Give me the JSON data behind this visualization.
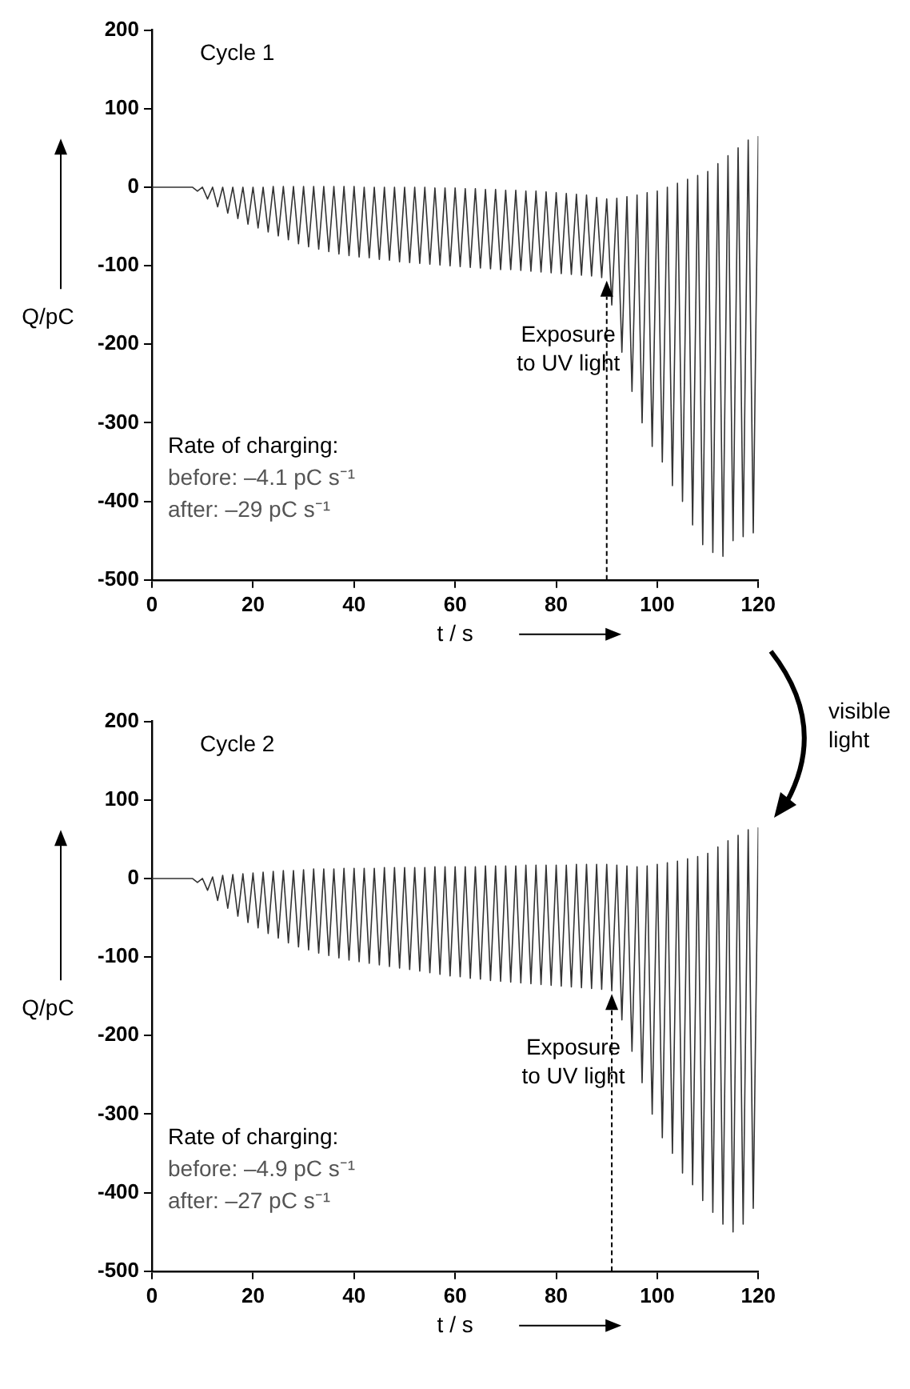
{
  "chart_data": [
    {
      "type": "line",
      "ylabel": "Q/pC",
      "xlabel": "t / s",
      "xlim": [
        0,
        120
      ],
      "xticks": [
        0,
        20,
        40,
        60,
        80,
        100,
        120
      ],
      "ylim": [
        -500,
        200
      ],
      "yticks": [
        -500,
        -400,
        -300,
        -200,
        -100,
        0,
        100,
        200
      ],
      "grid": false,
      "legend": false,
      "marker": "none",
      "line_style": "solid",
      "annotations": [
        {
          "text": "Exposure to UV light",
          "x": 90,
          "y": -115
        },
        "Cycle 1",
        "Rate of charging:",
        "before: –4.1 pC s⁻¹",
        "after: –29 pC s⁻¹"
      ],
      "series": [
        {
          "color": "#333333",
          "x": [
            0,
            8,
            9,
            10,
            11,
            12,
            13,
            14,
            15,
            16,
            17,
            18,
            19,
            20,
            21,
            22,
            23,
            24,
            25,
            26,
            27,
            28,
            29,
            30,
            31,
            32,
            33,
            34,
            35,
            36,
            37,
            38,
            39,
            40,
            41,
            42,
            43,
            44,
            45,
            46,
            47,
            48,
            49,
            50,
            51,
            52,
            53,
            54,
            55,
            56,
            57,
            58,
            59,
            60,
            61,
            62,
            63,
            64,
            65,
            66,
            67,
            68,
            69,
            70,
            71,
            72,
            73,
            74,
            75,
            76,
            77,
            78,
            79,
            80,
            81,
            82,
            83,
            84,
            85,
            86,
            87,
            88,
            89,
            90,
            91,
            92,
            93,
            94,
            95,
            96,
            97,
            98,
            99,
            100,
            101,
            102,
            103,
            104,
            105,
            106,
            107,
            108,
            109,
            110,
            111,
            112,
            113,
            114,
            115,
            116,
            117,
            118,
            119,
            120
          ],
          "values": [
            0,
            0,
            -5,
            0,
            -15,
            0,
            -25,
            0,
            -33,
            0,
            -40,
            0,
            -47,
            0,
            -52,
            0,
            -57,
            1,
            -62,
            1,
            -67,
            1,
            -72,
            1,
            -76,
            1,
            -79,
            1,
            -82,
            1,
            -85,
            1,
            -87,
            1,
            -89,
            0,
            -90,
            0,
            -92,
            0,
            -93,
            0,
            -95,
            0,
            -96,
            0,
            -97,
            0,
            -98,
            -1,
            -99,
            -1,
            -100,
            -1,
            -101,
            -2,
            -102,
            -2,
            -103,
            -3,
            -104,
            -3,
            -105,
            -4,
            -105,
            -4,
            -106,
            -5,
            -107,
            -5,
            -108,
            -6,
            -109,
            -7,
            -110,
            -8,
            -111,
            -9,
            -112,
            -10,
            -113,
            -13,
            -115,
            -15,
            -150,
            -14,
            -210,
            -12,
            -260,
            -10,
            -300,
            -7,
            -330,
            -5,
            -350,
            0,
            -380,
            5,
            -400,
            10,
            -430,
            15,
            -455,
            20,
            -465,
            30,
            -470,
            40,
            -450,
            50,
            -445,
            60,
            -440,
            65
          ]
        }
      ]
    },
    {
      "type": "other",
      "annotations": [
        "visible light"
      ]
    },
    {
      "type": "line",
      "ylabel": "Q/pC",
      "xlabel": "t / s",
      "xlim": [
        0,
        120
      ],
      "xticks": [
        0,
        20,
        40,
        60,
        80,
        100,
        120
      ],
      "ylim": [
        -500,
        200
      ],
      "yticks": [
        -500,
        -400,
        -300,
        -200,
        -100,
        0,
        100,
        200
      ],
      "grid": false,
      "legend": false,
      "marker": "none",
      "line_style": "solid",
      "annotations": [
        {
          "text": "Exposure to UV light",
          "x": 91,
          "y": -143
        },
        "Cycle 2",
        "Rate of charging:",
        "before: –4.9 pC s⁻¹",
        "after: –27 pC s⁻¹"
      ],
      "series": [
        {
          "color": "#333333",
          "x": [
            0,
            8,
            9,
            10,
            11,
            12,
            13,
            14,
            15,
            16,
            17,
            18,
            19,
            20,
            21,
            22,
            23,
            24,
            25,
            26,
            27,
            28,
            29,
            30,
            31,
            32,
            33,
            34,
            35,
            36,
            37,
            38,
            39,
            40,
            41,
            42,
            43,
            44,
            45,
            46,
            47,
            48,
            49,
            50,
            51,
            52,
            53,
            54,
            55,
            56,
            57,
            58,
            59,
            60,
            61,
            62,
            63,
            64,
            65,
            66,
            67,
            68,
            69,
            70,
            71,
            72,
            73,
            74,
            75,
            76,
            77,
            78,
            79,
            80,
            81,
            82,
            83,
            84,
            85,
            86,
            87,
            88,
            89,
            90,
            91,
            92,
            93,
            94,
            95,
            96,
            97,
            98,
            99,
            100,
            101,
            102,
            103,
            104,
            105,
            106,
            107,
            108,
            109,
            110,
            111,
            112,
            113,
            114,
            115,
            116,
            117,
            118,
            119,
            120
          ],
          "values": [
            0,
            0,
            -5,
            0,
            -15,
            2,
            -28,
            4,
            -38,
            5,
            -48,
            6,
            -56,
            7,
            -63,
            8,
            -70,
            9,
            -76,
            10,
            -82,
            10,
            -87,
            11,
            -91,
            12,
            -95,
            12,
            -98,
            12,
            -101,
            13,
            -104,
            13,
            -106,
            13,
            -108,
            13,
            -110,
            14,
            -112,
            14,
            -114,
            14,
            -116,
            14,
            -118,
            14,
            -120,
            15,
            -122,
            15,
            -124,
            15,
            -125,
            15,
            -127,
            15,
            -128,
            16,
            -130,
            16,
            -131,
            16,
            -132,
            16,
            -133,
            17,
            -134,
            17,
            -135,
            17,
            -136,
            17,
            -137,
            17,
            -138,
            18,
            -139,
            18,
            -140,
            18,
            -141,
            18,
            -143,
            17,
            -180,
            16,
            -220,
            15,
            -260,
            16,
            -300,
            18,
            -330,
            20,
            -350,
            22,
            -375,
            25,
            -390,
            28,
            -410,
            32,
            -425,
            40,
            -440,
            48,
            -450,
            55,
            -440,
            62,
            -420,
            65
          ]
        }
      ]
    }
  ]
}
